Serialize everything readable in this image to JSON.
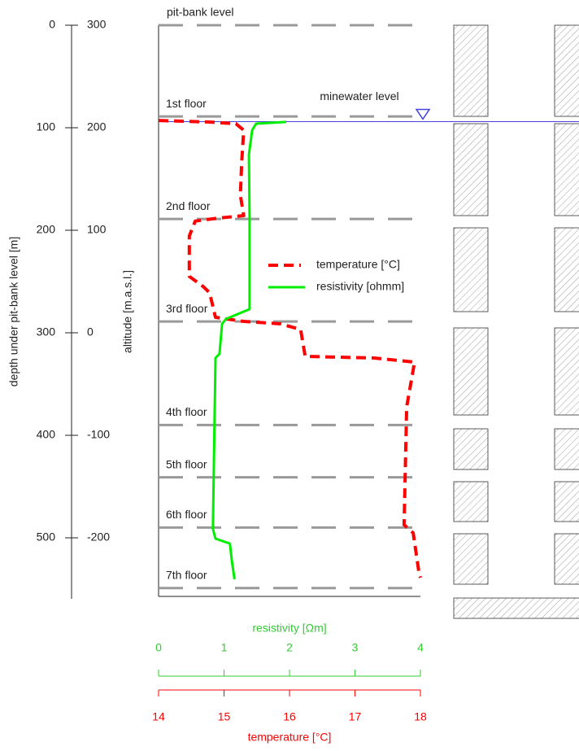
{
  "chart_data": {
    "type": "line",
    "y_label": "depth under pit-bank level [m]",
    "y2_label": "altitude [m.a.s.l.]",
    "ylim": [
      0,
      560
    ],
    "yticks": [
      0,
      100,
      200,
      300,
      400,
      500
    ],
    "y2lim": [
      300,
      -260
    ],
    "y2ticks": [
      300,
      200,
      100,
      0,
      -100,
      -200
    ],
    "x_label": "resistivity [Ωm]",
    "xlim": [
      0,
      4
    ],
    "xticks": [
      0,
      1,
      2,
      3,
      4
    ],
    "x_color": "#33cc33",
    "x2_label": "temperature [°C]",
    "x2lim": [
      14,
      18
    ],
    "x2ticks": [
      14,
      15,
      16,
      17,
      18
    ],
    "x2_color": "#ff0000",
    "levels": [
      {
        "label": "pit-bank level",
        "depth": 0
      },
      {
        "label": "1st floor",
        "depth": 89
      },
      {
        "label": "2nd floor",
        "depth": 189
      },
      {
        "label": "3rd floor",
        "depth": 289
      },
      {
        "label": "4th floor",
        "depth": 390
      },
      {
        "label": "5th floor",
        "depth": 441
      },
      {
        "label": "6th floor",
        "depth": 490
      },
      {
        "label": "7th floor",
        "depth": 549
      }
    ],
    "minewater": {
      "label": "minewater level",
      "depth": 94,
      "color": "#4444dd"
    },
    "series": [
      {
        "name": "temperature [°C]",
        "color": "#ff0000",
        "axis": "x2",
        "dashed": true,
        "depth": [
          92.9,
          94.4,
          96,
          102.4,
          134,
          165.9,
          185.7,
          188,
          191,
          205.6,
          245,
          254.8,
          261,
          284.9,
          288.9,
          291.3,
          296.8,
          323,
          324.6,
          328.6,
          372.2,
          487.3,
          495.2,
          534.9,
          538.9
        ],
        "values": [
          14.0,
          14.75,
          15.18,
          15.3,
          15.27,
          15.25,
          15.3,
          14.93,
          14.56,
          14.47,
          14.47,
          14.68,
          14.78,
          14.87,
          15.3,
          15.86,
          16.17,
          16.24,
          17.29,
          17.91,
          17.79,
          17.75,
          17.89,
          17.98,
          18.0
        ]
      },
      {
        "name": "resistivity [ohmm]",
        "color": "#00ee00",
        "axis": "x",
        "dashed": false,
        "depth": [
          94.4,
          96,
          102.4,
          126.2,
          189.7,
          277,
          286.5,
          291.3,
          320.6,
          324.6,
          491.3,
          500.8,
          505.6,
          523,
          540.5
        ],
        "values": [
          1.95,
          1.49,
          1.43,
          1.38,
          1.39,
          1.39,
          1.03,
          0.97,
          0.93,
          0.87,
          0.83,
          0.87,
          1.09,
          1.12,
          1.16
        ]
      }
    ]
  }
}
